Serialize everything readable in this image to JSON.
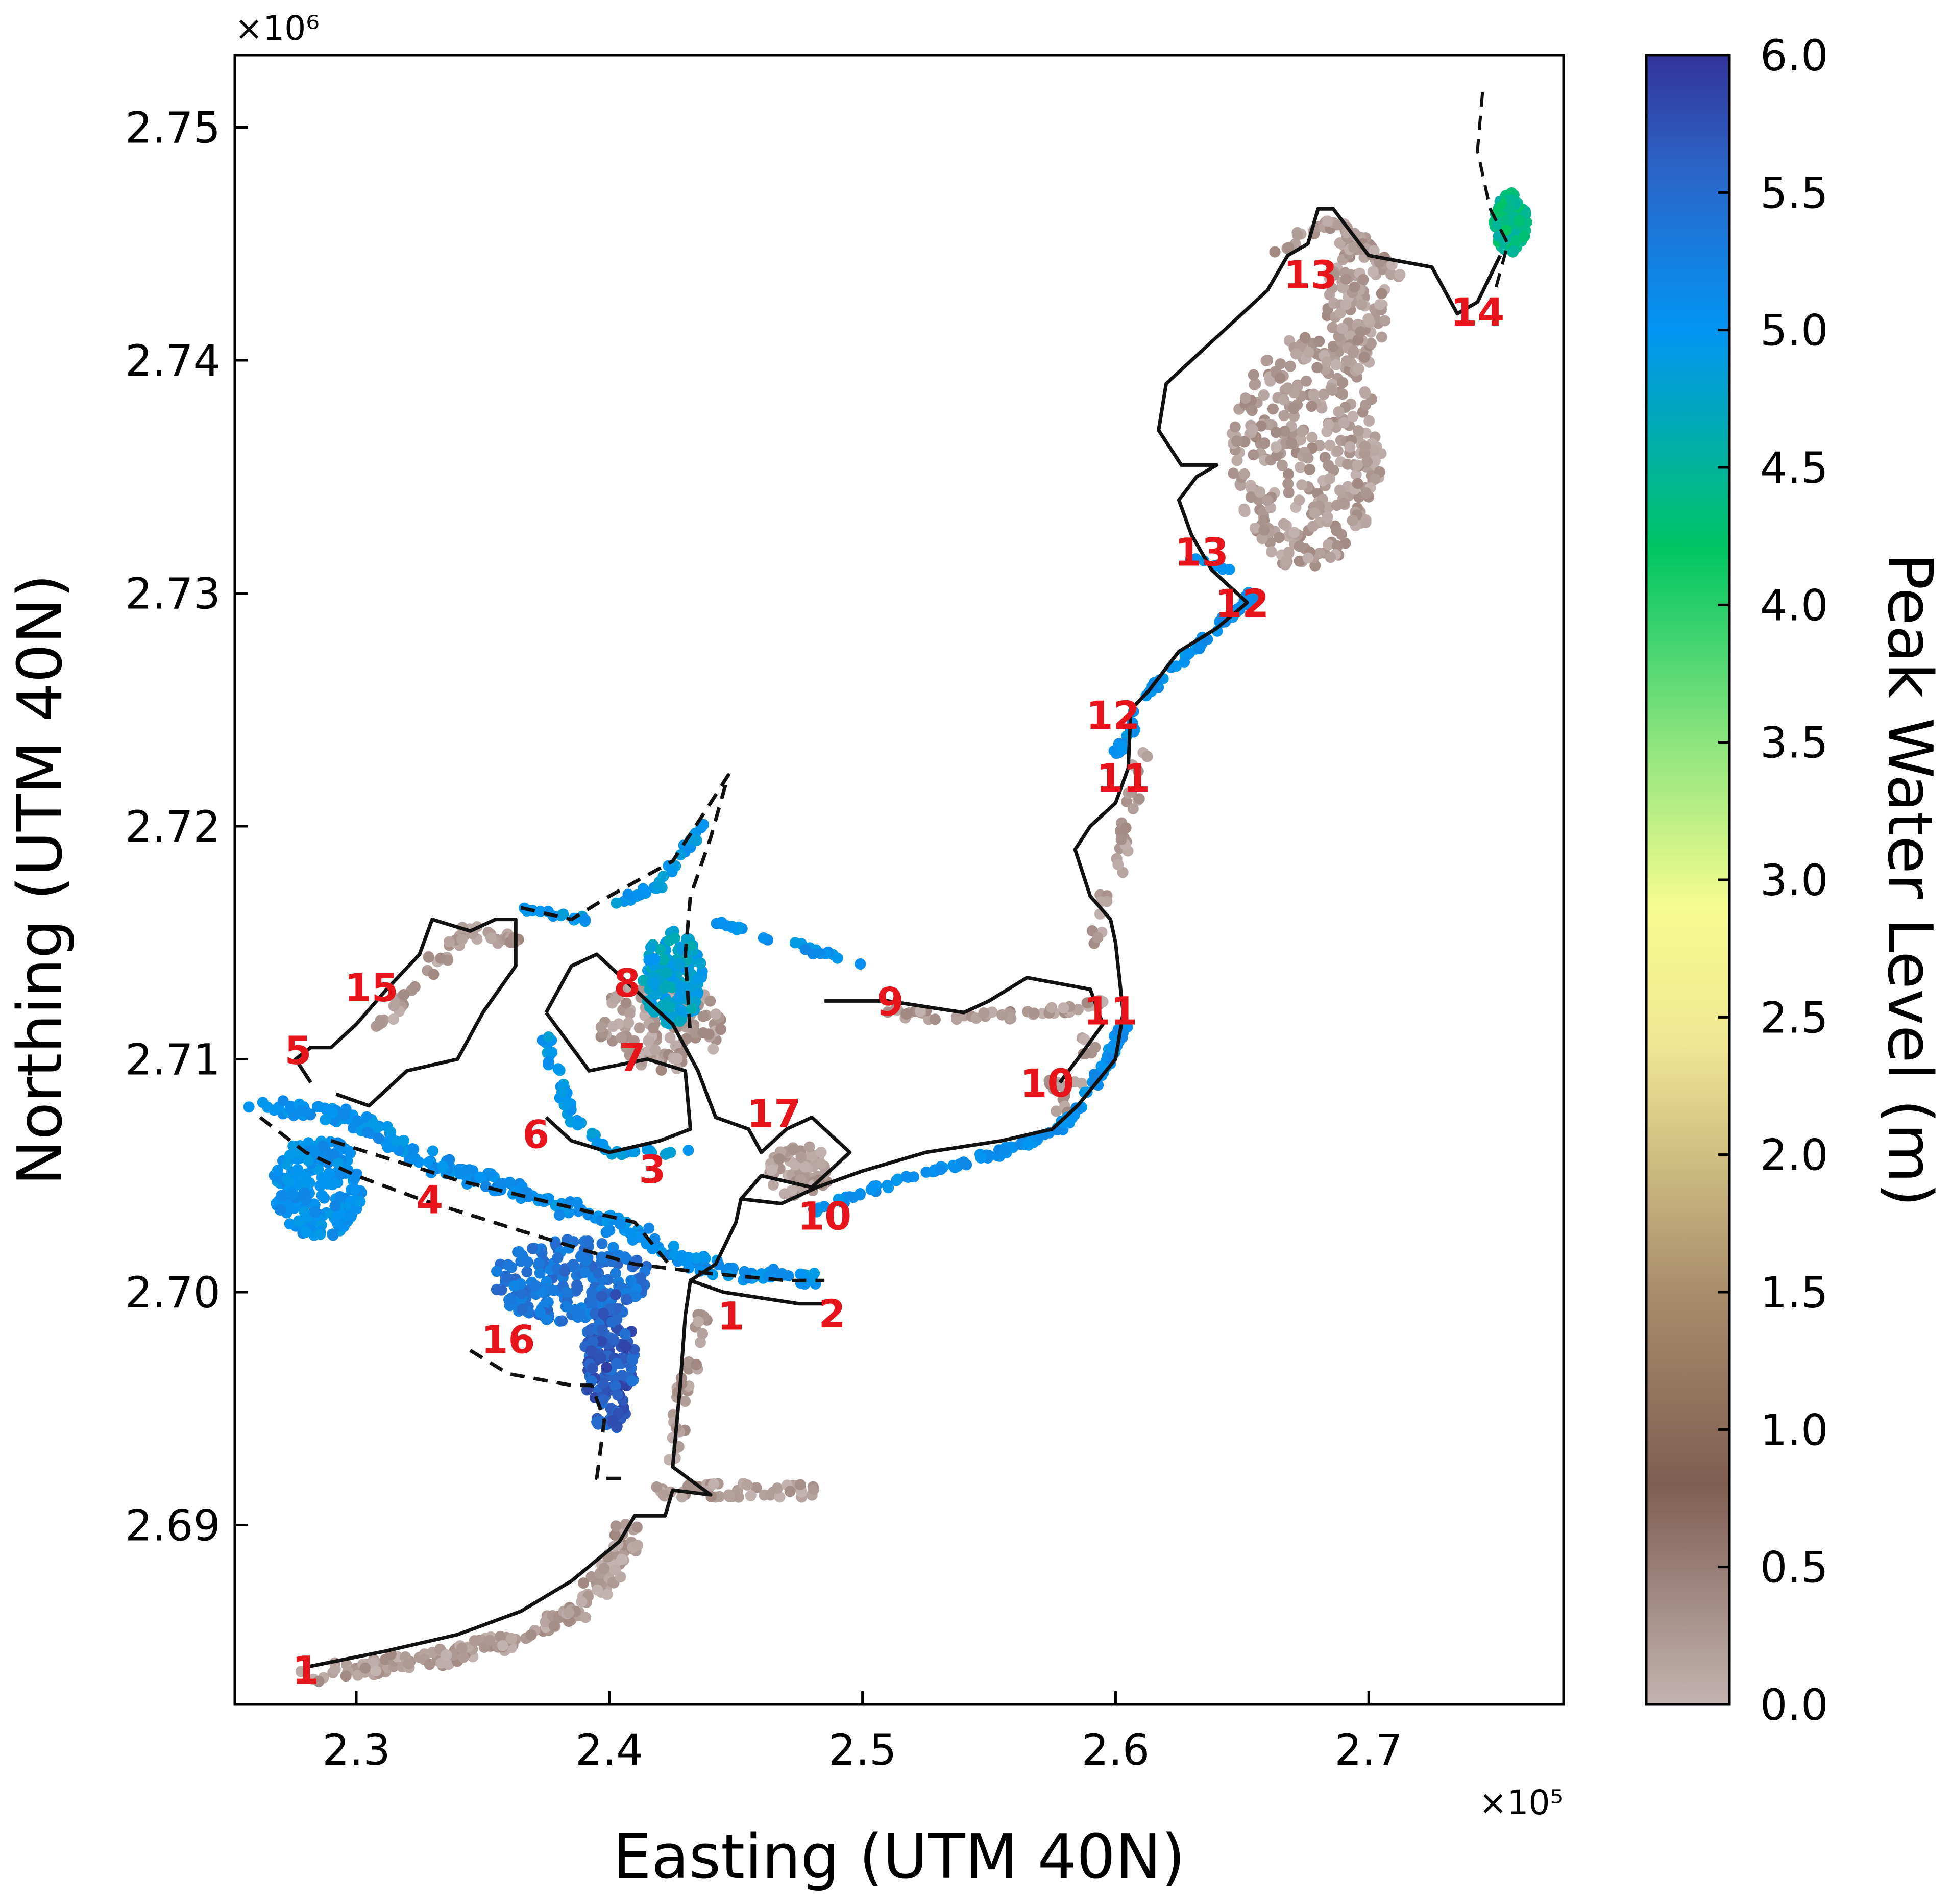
{
  "chart_data": {
    "type": "scatter",
    "xlabel": "Easting (UTM 40N)",
    "ylabel": "Northing (UTM 40N)",
    "x_multiplier": "×10⁵",
    "y_multiplier": "×10⁶",
    "xlim": [
      2.252,
      2.777
    ],
    "ylim": [
      2.6823,
      2.7531
    ],
    "x_ticks": [
      "2.3",
      "2.4",
      "2.5",
      "2.6",
      "2.7"
    ],
    "x_tick_values": [
      2.3,
      2.4,
      2.5,
      2.6,
      2.7
    ],
    "y_ticks": [
      "2.69",
      "2.70",
      "2.71",
      "2.72",
      "2.73",
      "2.74",
      "2.75"
    ],
    "y_tick_values": [
      2.69,
      2.7,
      2.71,
      2.72,
      2.73,
      2.74,
      2.75
    ],
    "colorbar": {
      "label": "Peak Water Level (m)",
      "range": [
        0.0,
        6.0
      ],
      "ticks": [
        "0.0",
        "0.5",
        "1.0",
        "1.5",
        "2.0",
        "2.5",
        "3.0",
        "3.5",
        "4.0",
        "4.5",
        "5.0",
        "5.5",
        "6.0"
      ],
      "tick_values": [
        0.0,
        0.5,
        1.0,
        1.5,
        2.0,
        2.5,
        3.0,
        3.5,
        4.0,
        4.5,
        5.0,
        5.5,
        6.0
      ],
      "stops": [
        {
          "v": 0.0,
          "color": "#c3b3b1"
        },
        {
          "v": 0.8,
          "color": "#7f5e52"
        },
        {
          "v": 1.5,
          "color": "#a88d6c"
        },
        {
          "v": 2.4,
          "color": "#f0e694"
        },
        {
          "v": 2.9,
          "color": "#f6fc8f"
        },
        {
          "v": 3.5,
          "color": "#8de47e"
        },
        {
          "v": 4.2,
          "color": "#00c663"
        },
        {
          "v": 5.0,
          "color": "#0295f4"
        },
        {
          "v": 5.6,
          "color": "#2c63c6"
        },
        {
          "v": 6.0,
          "color": "#333399"
        }
      ]
    },
    "site_labels": [
      {
        "text": "1",
        "x": 2.28,
        "y": 2.6838
      },
      {
        "text": "1",
        "x": 2.448,
        "y": 2.699
      },
      {
        "text": "2",
        "x": 2.488,
        "y": 2.6991
      },
      {
        "text": "3",
        "x": 2.417,
        "y": 2.7053
      },
      {
        "text": "4",
        "x": 2.329,
        "y": 2.704
      },
      {
        "text": "5",
        "x": 2.277,
        "y": 2.7104
      },
      {
        "text": "6",
        "x": 2.371,
        "y": 2.7068
      },
      {
        "text": "7",
        "x": 2.409,
        "y": 2.7101
      },
      {
        "text": "8",
        "x": 2.407,
        "y": 2.7133
      },
      {
        "text": "9",
        "x": 2.511,
        "y": 2.7125
      },
      {
        "text": "10",
        "x": 2.485,
        "y": 2.7033
      },
      {
        "text": "10",
        "x": 2.573,
        "y": 2.709
      },
      {
        "text": "11",
        "x": 2.598,
        "y": 2.7121
      },
      {
        "text": "11",
        "x": 2.603,
        "y": 2.7221
      },
      {
        "text": "12",
        "x": 2.599,
        "y": 2.7248
      },
      {
        "text": "12",
        "x": 2.65,
        "y": 2.7296
      },
      {
        "text": "13",
        "x": 2.634,
        "y": 2.7318
      },
      {
        "text": "13",
        "x": 2.677,
        "y": 2.7437
      },
      {
        "text": "14",
        "x": 2.743,
        "y": 2.7421
      },
      {
        "text": "15",
        "x": 2.306,
        "y": 2.7131
      },
      {
        "text": "16",
        "x": 2.36,
        "y": 2.698
      },
      {
        "text": "17",
        "x": 2.465,
        "y": 2.7077
      }
    ],
    "grid": false
  }
}
